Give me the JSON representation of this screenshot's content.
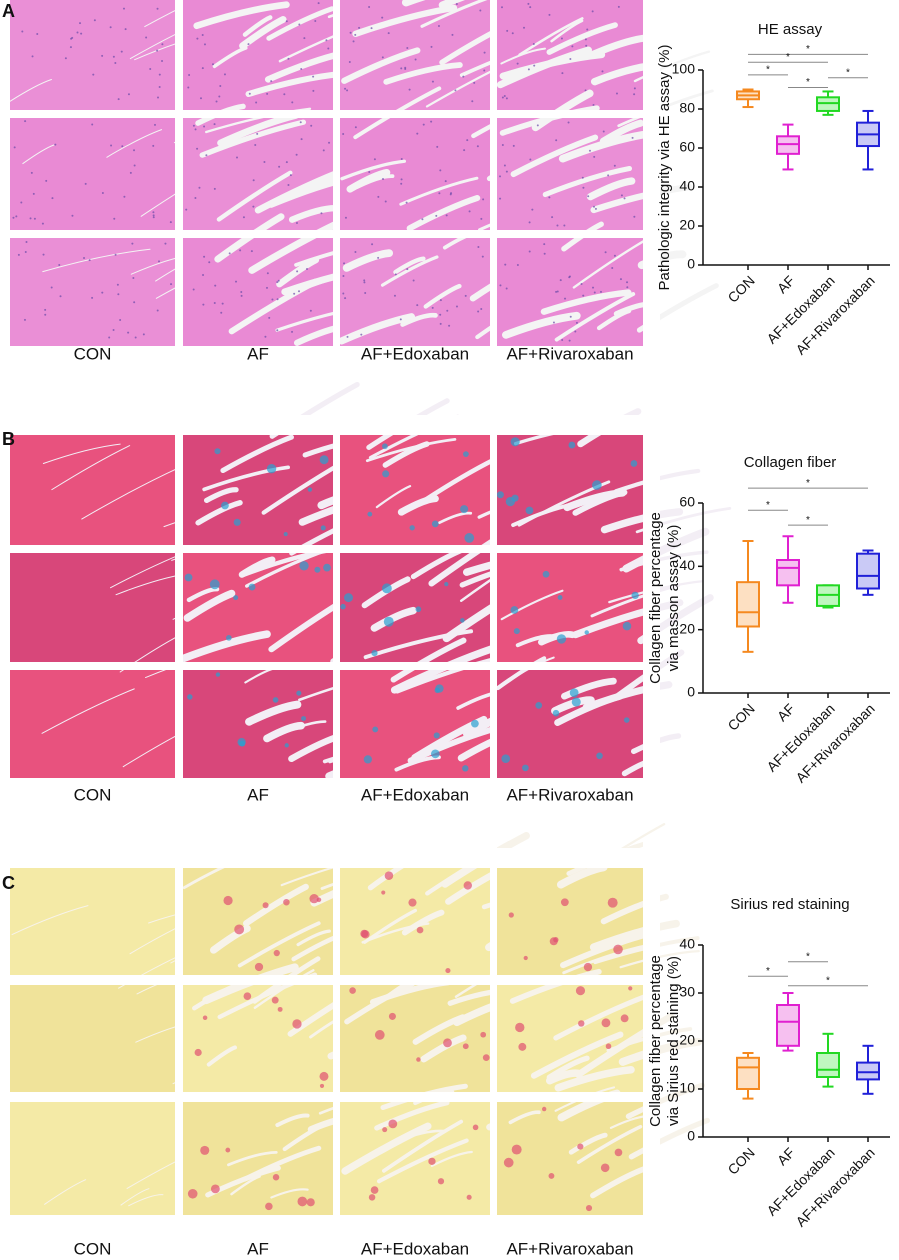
{
  "panels": [
    {
      "letter": "A",
      "image_labels": [
        "CON",
        "AF",
        "AF+Edoxaban",
        "AF+Rivaroxaban"
      ]
    },
    {
      "letter": "B",
      "image_labels": [
        "CON",
        "AF",
        "AF+Edoxaban",
        "AF+Rivaroxaban"
      ]
    },
    {
      "letter": "C",
      "image_labels": [
        "CON",
        "AF",
        "AF+Edoxaban",
        "AF+Rivaroxaban"
      ]
    }
  ],
  "chart_data": [
    {
      "type": "box",
      "title": "HE assay",
      "ylabel": [
        "Pathologic integrity via HE assay (%)"
      ],
      "categories": [
        "CON",
        "AF",
        "AF+Edoxaban",
        "AF+Rivaroxaban"
      ],
      "colors": [
        "#f5891f",
        "#e020d0",
        "#22d822",
        "#2020d8"
      ],
      "fills": [
        "#fde0c2",
        "#f6c0f0",
        "#bff7bf",
        "#cacaf6"
      ],
      "min": [
        81,
        49,
        77,
        49
      ],
      "q1": [
        85,
        57,
        79,
        61
      ],
      "median": [
        87,
        62,
        83,
        67
      ],
      "q3": [
        89,
        66,
        86,
        73
      ],
      "max": [
        90,
        72,
        89,
        79
      ],
      "ylim": [
        0,
        100
      ],
      "yticks": [
        0,
        20,
        40,
        60,
        80,
        100
      ],
      "comparisons": [
        {
          "from": 0,
          "to": 3,
          "y": 108,
          "label": "*"
        },
        {
          "from": 0,
          "to": 2,
          "y": 104,
          "label": "*"
        },
        {
          "from": 0,
          "to": 1,
          "y": 97.5,
          "label": "*"
        },
        {
          "from": 2,
          "to": 3,
          "y": 96,
          "label": "*"
        },
        {
          "from": 1,
          "to": 2,
          "y": 91,
          "label": "*"
        }
      ]
    },
    {
      "type": "box",
      "title": "Collagen fiber",
      "ylabel": [
        "Collagen fiber percentage",
        "via masson assay (%)"
      ],
      "categories": [
        "CON",
        "AF",
        "AF+Edoxaban",
        "AF+Rivaroxaban"
      ],
      "colors": [
        "#f5891f",
        "#e020d0",
        "#22d822",
        "#2020d8"
      ],
      "fills": [
        "#fde0c2",
        "#f6c0f0",
        "#bff7bf",
        "#cacaf6"
      ],
      "min": [
        13,
        28.5,
        27,
        31
      ],
      "q1": [
        21,
        34,
        27.5,
        33
      ],
      "median": [
        25.5,
        39.5,
        31,
        37
      ],
      "q3": [
        35,
        42,
        34,
        44
      ],
      "max": [
        48,
        49.5,
        34,
        45
      ],
      "ylim": [
        0,
        60
      ],
      "yticks": [
        0,
        20,
        40,
        60
      ],
      "comparisons": [
        {
          "from": 0,
          "to": 3,
          "y": 64.7,
          "label": "*"
        },
        {
          "from": 0,
          "to": 1,
          "y": 57.7,
          "label": "*"
        },
        {
          "from": 1,
          "to": 2,
          "y": 53,
          "label": "*"
        }
      ]
    },
    {
      "type": "box",
      "title": "Sirius red staining",
      "ylabel": [
        "Collagen fiber percentage",
        "via Sirius red staining (%)"
      ],
      "categories": [
        "CON",
        "AF",
        "AF+Edoxaban",
        "AF+Rivaroxaban"
      ],
      "colors": [
        "#f5891f",
        "#e020d0",
        "#22d822",
        "#2020d8"
      ],
      "fills": [
        "#fde0c2",
        "#f6c0f0",
        "#bff7bf",
        "#cacaf6"
      ],
      "min": [
        8,
        18,
        10.5,
        9
      ],
      "q1": [
        10,
        19,
        12.5,
        12
      ],
      "median": [
        14.5,
        24,
        14,
        13.5
      ],
      "q3": [
        16.5,
        27.5,
        17.5,
        15.5
      ],
      "max": [
        17.5,
        30,
        21.5,
        19
      ],
      "ylim": [
        0,
        40
      ],
      "yticks": [
        0,
        10,
        20,
        30,
        40
      ],
      "comparisons": [
        {
          "from": 1,
          "to": 2,
          "y": 36.5,
          "label": "*"
        },
        {
          "from": 0,
          "to": 1,
          "y": 33.5,
          "label": "*"
        },
        {
          "from": 1,
          "to": 3,
          "y": 31.5,
          "label": "*"
        }
      ]
    }
  ]
}
